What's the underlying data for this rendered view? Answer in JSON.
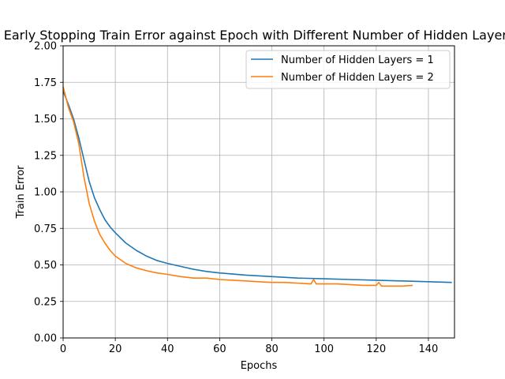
{
  "chart_data": {
    "type": "line",
    "title": "Early Stopping Train Error against Epoch with Different Number of Hidden Layers",
    "xlabel": "Epochs",
    "ylabel": "Train Error",
    "xlim": [
      0,
      150
    ],
    "ylim": [
      0,
      2.0
    ],
    "x_ticks": [
      0,
      20,
      40,
      60,
      80,
      100,
      120,
      140
    ],
    "y_ticks": [
      0.0,
      0.25,
      0.5,
      0.75,
      1.0,
      1.25,
      1.5,
      1.75,
      2.0
    ],
    "y_tick_labels": [
      "0.00",
      "0.25",
      "0.50",
      "0.75",
      "1.00",
      "1.25",
      "1.50",
      "1.75",
      "2.00"
    ],
    "grid": true,
    "legend_position": "top-right",
    "series": [
      {
        "name": "Number of Hidden Layers = 1",
        "color": "#1f77b4",
        "x": [
          0,
          2,
          4,
          6,
          8,
          10,
          12,
          14,
          16,
          18,
          20,
          24,
          28,
          32,
          36,
          40,
          45,
          50,
          55,
          60,
          70,
          80,
          90,
          100,
          110,
          120,
          130,
          140,
          149
        ],
        "y": [
          1.69,
          1.6,
          1.5,
          1.37,
          1.22,
          1.07,
          0.96,
          0.88,
          0.81,
          0.76,
          0.72,
          0.65,
          0.6,
          0.56,
          0.53,
          0.51,
          0.49,
          0.47,
          0.455,
          0.445,
          0.43,
          0.42,
          0.41,
          0.405,
          0.4,
          0.395,
          0.39,
          0.385,
          0.38
        ]
      },
      {
        "name": "Number of Hidden Layers = 2",
        "color": "#ff7f0e",
        "x": [
          0,
          2,
          4,
          6,
          8,
          10,
          12,
          14,
          16,
          18,
          20,
          24,
          28,
          32,
          36,
          40,
          45,
          50,
          55,
          60,
          65,
          70,
          75,
          80,
          85,
          90,
          95,
          96,
          97,
          100,
          105,
          110,
          115,
          120,
          121,
          122,
          125,
          130,
          134
        ],
        "y": [
          1.72,
          1.58,
          1.48,
          1.33,
          1.1,
          0.92,
          0.8,
          0.71,
          0.65,
          0.6,
          0.56,
          0.51,
          0.48,
          0.46,
          0.445,
          0.435,
          0.42,
          0.41,
          0.41,
          0.4,
          0.395,
          0.39,
          0.385,
          0.38,
          0.38,
          0.375,
          0.37,
          0.4,
          0.37,
          0.37,
          0.37,
          0.365,
          0.36,
          0.36,
          0.38,
          0.355,
          0.355,
          0.355,
          0.36
        ]
      }
    ]
  }
}
